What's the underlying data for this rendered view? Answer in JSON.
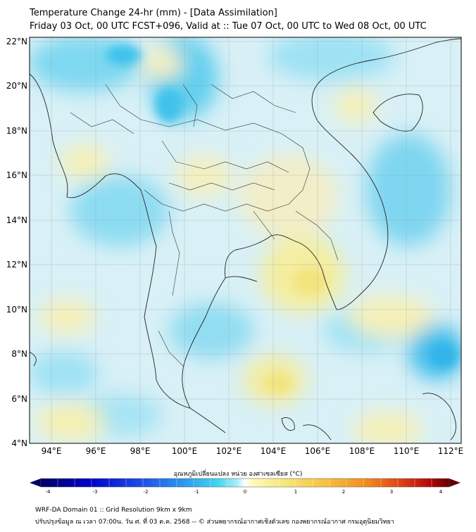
{
  "header": {
    "title_line1": "Temperature Change 24-hr (mm) - [Data Assimilation]",
    "title_line2": "Friday 03 Oct, 00 UTC FCST+096, Valid at :: Tue 07 Oct, 00 UTC to Wed 08 Oct, 00 UTC"
  },
  "map": {
    "lat_labels": [
      "22°N",
      "20°N",
      "18°N",
      "16°N",
      "14°N",
      "12°N",
      "10°N",
      "8°N",
      "6°N",
      "4°N"
    ],
    "lon_labels": [
      "94°E",
      "96°E",
      "98°E",
      "100°E",
      "102°E",
      "104°E",
      "106°E",
      "108°E",
      "110°E",
      "112°E"
    ],
    "lon_range": [
      93,
      112.5
    ],
    "lat_range": [
      4,
      22.2
    ],
    "grid": true
  },
  "colorbar": {
    "title": "อุณหภูมิเปลี่ยนแปลง หน่วย องศาเซลเซียส (°C)",
    "tick_labels": [
      "-4",
      "-3",
      "-2",
      "-1",
      "0",
      "1",
      "2",
      "3",
      "4"
    ],
    "range": [
      -4,
      4
    ],
    "colors": [
      "#000064",
      "#0000c8",
      "#1e50e6",
      "#2ea0ee",
      "#40d4f0",
      "#a8ecf6",
      "#ffffff",
      "#fff8b8",
      "#f6e678",
      "#f6c040",
      "#f08a1e",
      "#e0401a",
      "#b40a0a",
      "#640000"
    ]
  },
  "footer": {
    "line1": "WRF-DA Domain 01 :: Grid Resolution 9km x 9km",
    "line2": "ปรับปรุงข้อมูล ณ เวลา 07:00น. วัน ศ. ที่ 03 ต.ค. 2568 -- © ส่วนพยากรณ์อากาศเชิงตัวเลข กองพยากรณ์อากาศ กรมอุตุนิยมวิทยา"
  },
  "icons": {
    "colorbar_extend_min": "triangle-left-icon",
    "colorbar_extend_max": "triangle-right-icon"
  }
}
